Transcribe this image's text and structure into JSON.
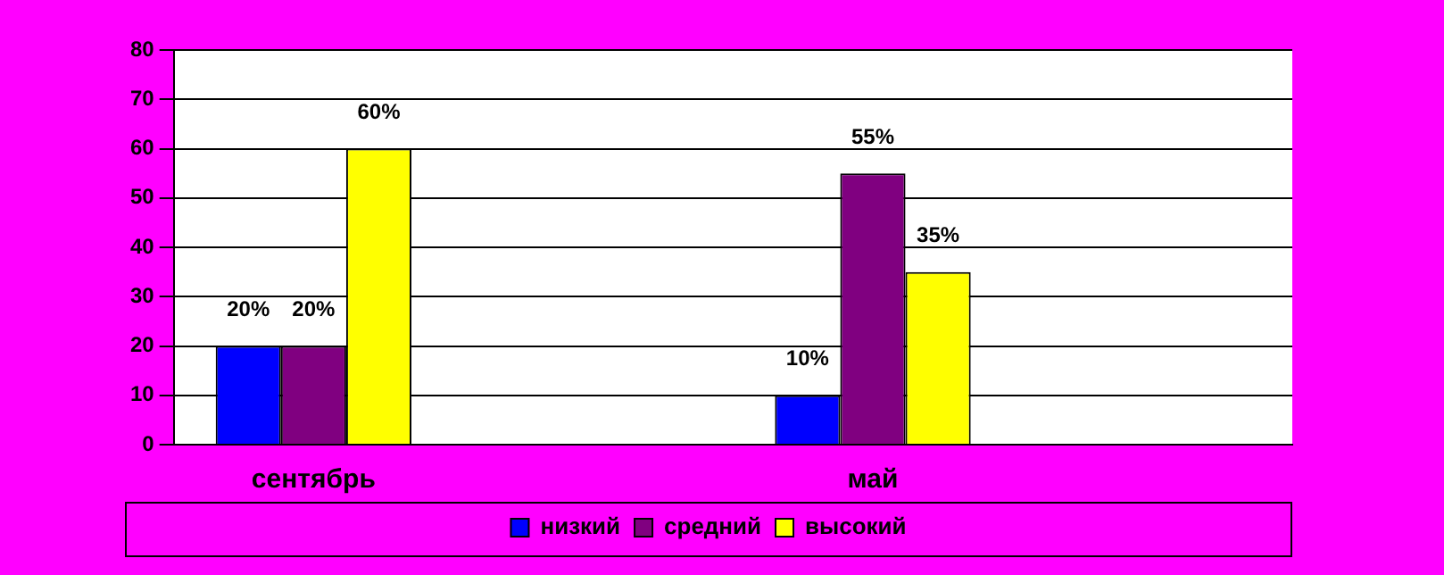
{
  "chart_data": {
    "type": "bar",
    "categories": [
      "сентябрь",
      null,
      "май",
      null
    ],
    "series": [
      {
        "name": "низкий",
        "color": "#0000ff",
        "values": [
          20,
          null,
          10,
          null
        ],
        "value_labels": [
          "20%",
          null,
          "10%",
          null
        ]
      },
      {
        "name": "средний",
        "color": "#800080",
        "values": [
          20,
          null,
          55,
          null
        ],
        "value_labels": [
          "20%",
          null,
          "55%",
          null
        ]
      },
      {
        "name": "высокий",
        "color": "#ffff00",
        "values": [
          60,
          null,
          35,
          null
        ],
        "value_labels": [
          "60%",
          null,
          "35%",
          null
        ]
      }
    ],
    "ylim": [
      0,
      80
    ],
    "yticks": [
      0,
      10,
      20,
      30,
      40,
      50,
      60,
      70,
      80
    ],
    "grid": "y",
    "legend": "bottom"
  }
}
